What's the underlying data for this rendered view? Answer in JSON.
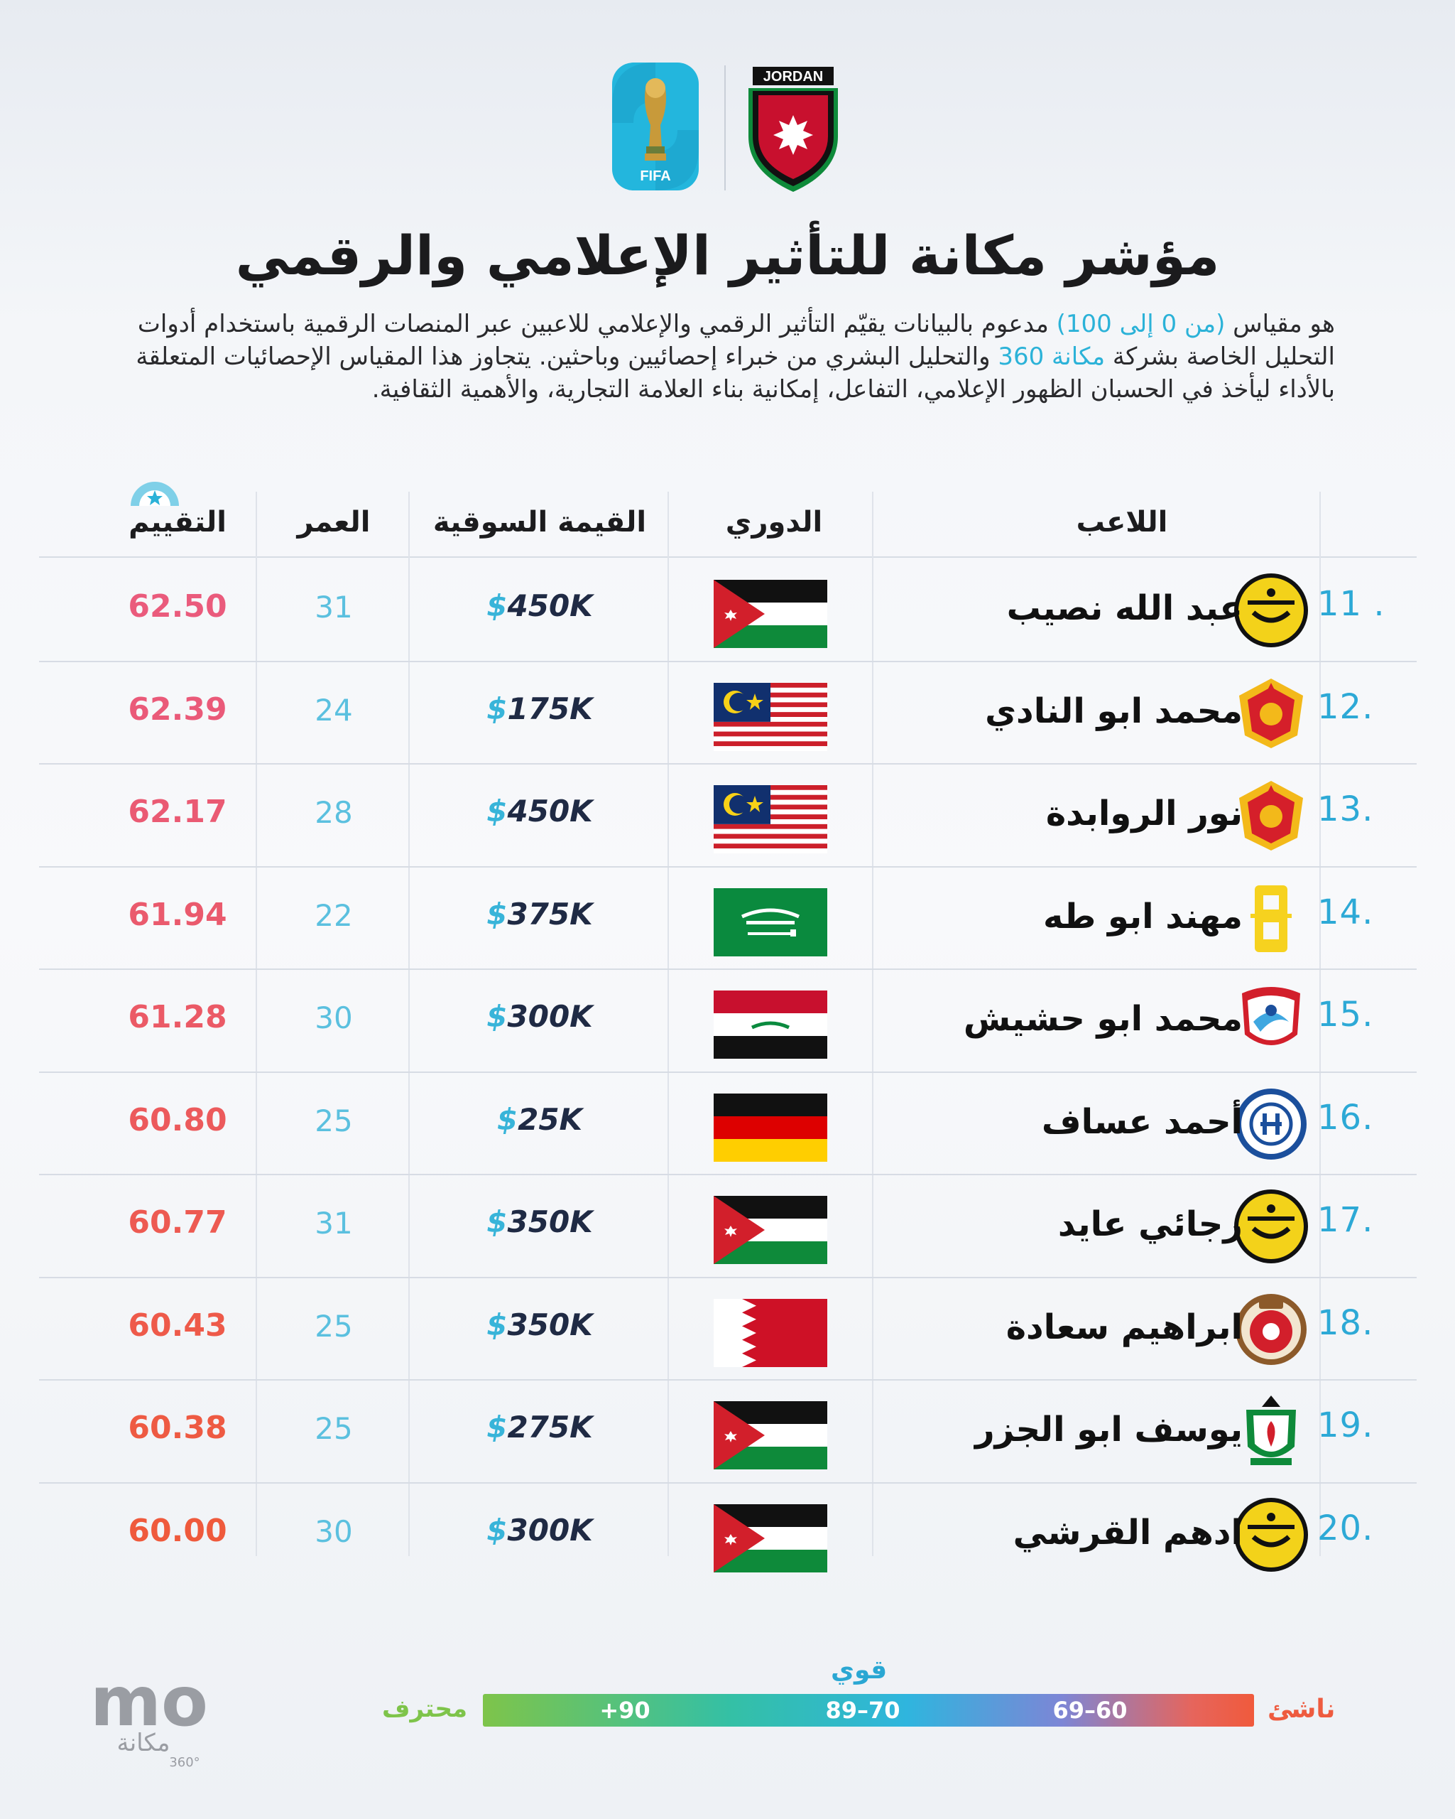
{
  "header": {
    "jordan_label": "JORDAN",
    "fifa_label": "FIFA"
  },
  "title": "مؤشر مكانة للتأثير الإعلامي والرقمي",
  "intro": {
    "p1": "هو مقياس ",
    "h1": "(من 0 إلى 100)",
    "p2": " مدعوم بالبيانات يقيّم التأثير الرقمي والإعلامي للاعبين عبر المنصات الرقمية باستخدام أدوات التحليل الخاصة بشركة ",
    "h2": "مكانة 360",
    "p3": " والتحليل البشري من خبراء إحصائيين وباحثين. يتجاوز هذا المقياس الإحصائيات المتعلقة بالأداء ليأخذ في الحسبان الظهور الإعلامي، التفاعل، إمكانية بناء العلامة التجارية، والأهمية الثقافية."
  },
  "table": {
    "headers": {
      "player": "اللاعب",
      "league": "الدوري",
      "value": "القيمة السوقية",
      "age": "العمر",
      "rating": "التقييم"
    },
    "rows": [
      {
        "rank": "11 .",
        "name": "عبد الله نصيب",
        "club_icon": "yellow-club-crest-icon",
        "flag": "jordan-flag-icon",
        "value": "450K",
        "age": "31",
        "rating": "62.50",
        "color": "#ea5b7c"
      },
      {
        "rank": "12.",
        "name": "محمد ابو النادي",
        "club_icon": "red-yellow-club-crest-icon",
        "flag": "malaysia-flag-icon",
        "value": "175K",
        "age": "24",
        "rating": "62.39",
        "color": "#ea5a79"
      },
      {
        "rank": "13.",
        "name": "نور الروابدة",
        "club_icon": "red-yellow-club-crest-icon",
        "flag": "malaysia-flag-icon",
        "value": "450K",
        "age": "28",
        "rating": "62.17",
        "color": "#ea5a73"
      },
      {
        "rank": "14.",
        "name": "مهند ابو طه",
        "club_icon": "yellow-monogram-crest-icon",
        "flag": "saudi-arabia-flag-icon",
        "value": "375K",
        "age": "22",
        "rating": "61.94",
        "color": "#ea5a6d"
      },
      {
        "rank": "15.",
        "name": "محمد ابو حشيش",
        "club_icon": "zakho-club-crest-icon",
        "flag": "iraq-flag-icon",
        "value": "300K",
        "age": "30",
        "rating": "61.28",
        "color": "#eb5a66"
      },
      {
        "rank": "16.",
        "name": "أحمد عساف",
        "club_icon": "blue-club-crest-icon",
        "flag": "germany-flag-icon",
        "value": "25K",
        "age": "25",
        "rating": "60.80",
        "color": "#ec5a5c"
      },
      {
        "rank": "17.",
        "name": "رجائي عايد",
        "club_icon": "yellow-club-crest-icon",
        "flag": "jordan-flag-icon",
        "value": "350K",
        "age": "31",
        "rating": "60.77",
        "color": "#ed5a52"
      },
      {
        "rank": "18.",
        "name": "ابراهيم سعادة",
        "club_icon": "red-round-club-crest-icon",
        "flag": "bahrain-flag-icon",
        "value": "350K",
        "age": "25",
        "rating": "60.43",
        "color": "#ee5a4a"
      },
      {
        "rank": "19.",
        "name": "يوسف ابو الجزر",
        "club_icon": "green-red-shield-crest-icon",
        "flag": "jordan-flag-icon",
        "value": "275K",
        "age": "25",
        "rating": "60.38",
        "color": "#ee5a43"
      },
      {
        "rank": "20.",
        "name": "ادهم القرشي",
        "club_icon": "yellow-club-crest-icon",
        "flag": "jordan-flag-icon",
        "value": "300K",
        "age": "30",
        "rating": "60.00",
        "color": "#ef5a3c"
      }
    ],
    "currency": "$"
  },
  "legend": {
    "strong": "قوي",
    "pro": "محترف",
    "novice": "ناشئ",
    "seg_high": "+90",
    "seg_mid": "89–70",
    "seg_low": "69–60"
  },
  "brand": {
    "mark": "mo",
    "name": "مكانة",
    "tag": "360°"
  }
}
